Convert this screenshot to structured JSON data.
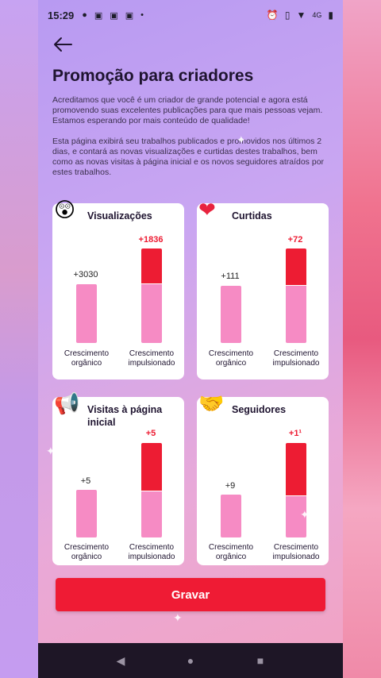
{
  "status": {
    "time": "15:29",
    "icons_left": [
      "chat-bubble-icon",
      "notification-icon",
      "notification-icon",
      "notification-icon",
      "dot-icon"
    ],
    "icons_right": [
      "alarm-icon",
      "vibrate-icon",
      "wifi-icon",
      "signal-4g-icon",
      "battery-icon"
    ],
    "network": "4G"
  },
  "header": {
    "back_icon": "arrow-left-icon",
    "title": "Promoção para criadores"
  },
  "description": {
    "p1": "Acreditamos que você é um criador de grande potencial e agora está promovendo suas excelentes publicações para que mais pessoas vejam. Estamos esperando por mais conteúdo de qualidade!",
    "p2": "Esta página exibirá seu trabalhos publicados e promovidos nos últimos 2 dias, e contará as novas visualizações e curtidas destes trabalhos, bem como as novas visitas à página inicial e os novos seguidores atraídos por estes trabalhos."
  },
  "cards": [
    {
      "title": "Visualizações",
      "icon": "surprised-face-icon",
      "organic_value": "+3030",
      "boost_value": "+1836",
      "organic": 3030,
      "boost": 1836,
      "organic_label": "Crescimento orgânico",
      "boost_label": "Crescimento impulsionado"
    },
    {
      "title": "Curtidas",
      "icon": "heart-icon",
      "organic_value": "+111",
      "boost_value": "+72",
      "organic": 111,
      "boost": 72,
      "organic_label": "Crescimento orgânico",
      "boost_label": "Crescimento impulsionado"
    },
    {
      "title": "Visitas à página inicial",
      "icon": "megaphone-icon",
      "organic_value": "+5",
      "boost_value": "+5",
      "organic": 5,
      "boost": 5,
      "organic_label": "Crescimento orgânico",
      "boost_label": "Crescimento impulsionado"
    },
    {
      "title": "Seguidores",
      "icon": "handshake-icon",
      "organic_value": "+9",
      "boost_value": "+1¹",
      "organic": 9,
      "boost": 11,
      "organic_label": "Crescimento orgânico",
      "boost_label": "Crescimento impulsionado"
    }
  ],
  "button": {
    "label": "Gravar"
  },
  "navbar": {
    "back": "back-triangle-icon",
    "home": "home-circle-icon",
    "recents": "recents-square-icon"
  },
  "colors": {
    "accent": "#ef1b34",
    "organic_bar": "#f68bc4",
    "boost_bar": "#ed1c33"
  }
}
